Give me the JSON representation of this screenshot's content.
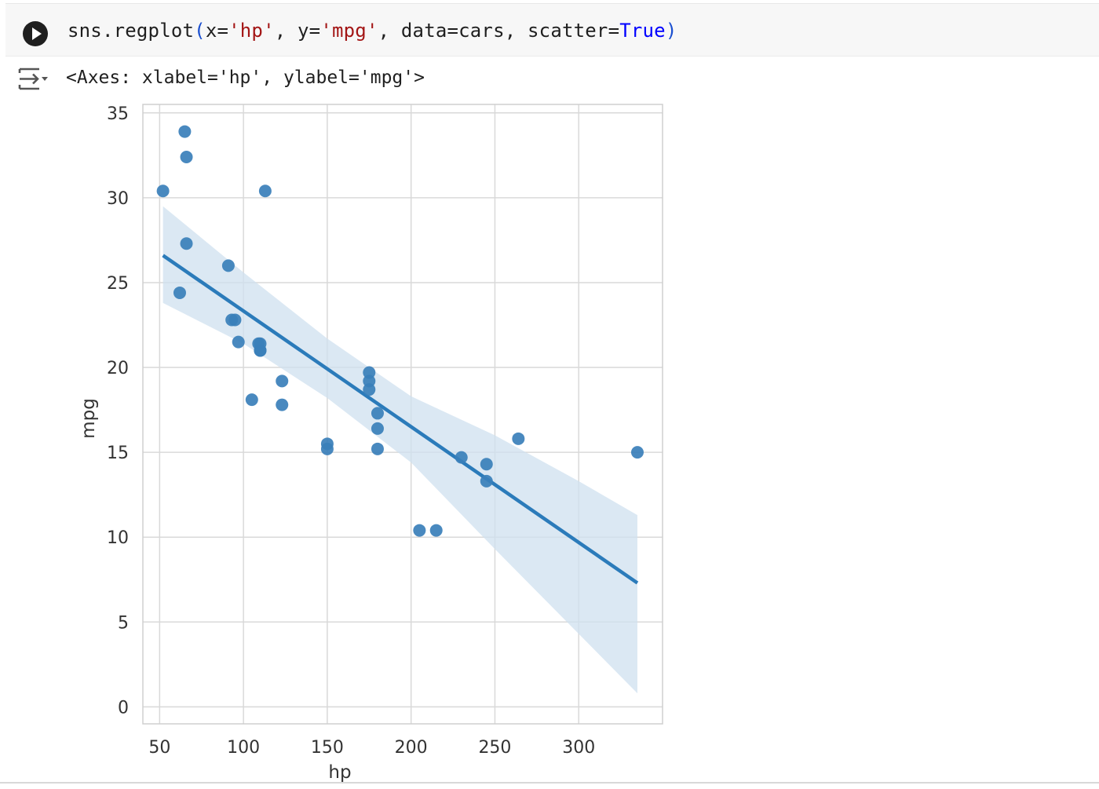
{
  "cell": {
    "code_tokens": [
      {
        "t": "sns.regplot",
        "c": ""
      },
      {
        "t": "(",
        "c": "tk-paren"
      },
      {
        "t": "x=",
        "c": ""
      },
      {
        "t": "'hp'",
        "c": "tk-str"
      },
      {
        "t": ", y=",
        "c": ""
      },
      {
        "t": "'mpg'",
        "c": "tk-str"
      },
      {
        "t": ", data=cars, scatter=",
        "c": ""
      },
      {
        "t": "True",
        "c": "tk-kw"
      },
      {
        "t": ")",
        "c": "tk-paren"
      }
    ],
    "output_text": "<Axes: xlabel='hp', ylabel='mpg'>"
  },
  "icons": {
    "run": "play-circle-icon",
    "output_toggle": "output-collapse-icon"
  },
  "colors": {
    "accent": "#2b7bba",
    "point": "#3a7fba",
    "band": "#cfe0ef",
    "grid": "#d9d9d9"
  },
  "chart_data": {
    "type": "scatter",
    "xlabel": "hp",
    "ylabel": "mpg",
    "xlim": [
      40,
      350
    ],
    "ylim": [
      -1,
      35.5
    ],
    "xticks": [
      50,
      100,
      150,
      200,
      250,
      300
    ],
    "yticks": [
      0,
      5,
      10,
      15,
      20,
      25,
      30,
      35
    ],
    "grid": true,
    "points": [
      [
        52,
        30.4
      ],
      [
        65,
        33.9
      ],
      [
        66,
        32.4
      ],
      [
        66,
        27.3
      ],
      [
        62,
        24.4
      ],
      [
        91,
        26.0
      ],
      [
        93,
        22.8
      ],
      [
        95,
        22.8
      ],
      [
        97,
        21.5
      ],
      [
        105,
        18.1
      ],
      [
        109,
        21.4
      ],
      [
        110,
        21.0
      ],
      [
        110,
        21.4
      ],
      [
        110,
        21.0
      ],
      [
        113,
        30.4
      ],
      [
        123,
        19.2
      ],
      [
        123,
        17.8
      ],
      [
        150,
        15.5
      ],
      [
        150,
        15.2
      ],
      [
        175,
        18.7
      ],
      [
        175,
        19.2
      ],
      [
        175,
        19.7
      ],
      [
        180,
        16.4
      ],
      [
        180,
        17.3
      ],
      [
        180,
        15.2
      ],
      [
        205,
        10.4
      ],
      [
        215,
        10.4
      ],
      [
        230,
        14.7
      ],
      [
        245,
        13.3
      ],
      [
        245,
        14.3
      ],
      [
        264,
        15.8
      ],
      [
        335,
        15.0
      ]
    ],
    "regression_line": {
      "x": [
        52,
        335
      ],
      "y": [
        26.6,
        7.3
      ]
    },
    "confidence_band": {
      "x": [
        52,
        100,
        150,
        200,
        250,
        300,
        335
      ],
      "upper": [
        29.5,
        25.6,
        21.7,
        18.3,
        16.0,
        13.3,
        11.3
      ],
      "lower": [
        23.8,
        21.4,
        18.2,
        14.4,
        9.3,
        4.3,
        0.8
      ]
    }
  }
}
